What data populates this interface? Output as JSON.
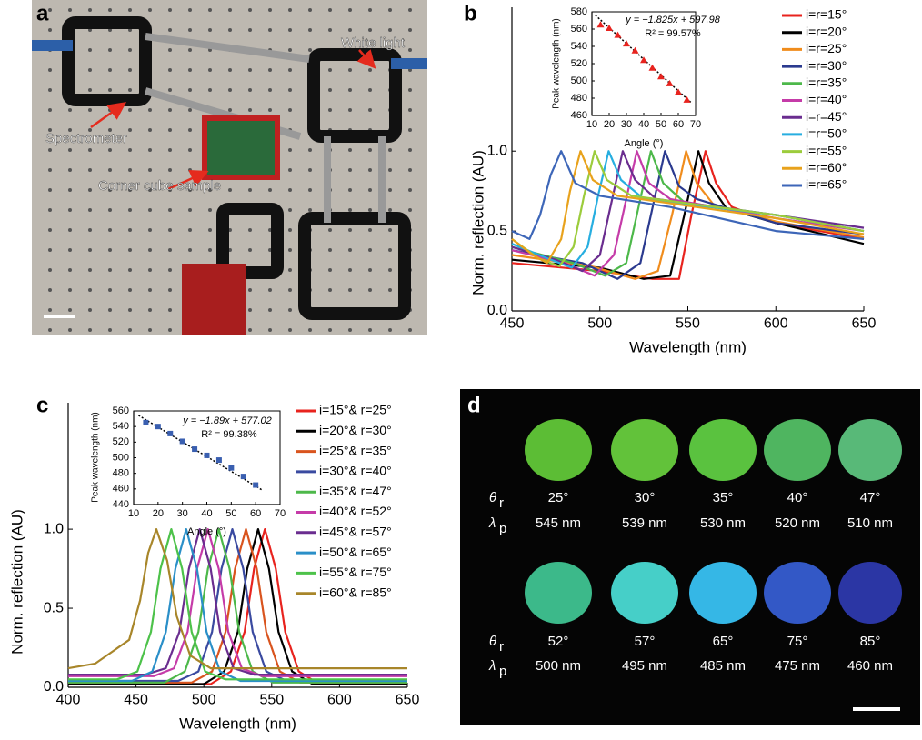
{
  "photo": {
    "label": "a",
    "annotations": [
      "Spectrometer",
      "White light",
      "Corner cube sample"
    ]
  },
  "chart_data": [
    {
      "type": "line",
      "label": "b",
      "xlabel": "Wavelength (nm)",
      "ylabel": "Norm. reflection (AU)",
      "xlim": [
        450,
        650
      ],
      "xticks": [
        450,
        500,
        550,
        600,
        650
      ],
      "ylim": [
        0,
        1.9
      ],
      "yticks": [
        {
          "value": 0,
          "label": "0.0"
        },
        0.5,
        {
          "value": 1,
          "label": "1.0"
        }
      ],
      "legend": "upper right",
      "series": [
        {
          "name": "i=r=15°",
          "color": "#e8231e",
          "x": [
            450,
            500,
            530,
            545,
            552,
            560,
            566,
            575,
            600,
            650
          ],
          "values": [
            0.3,
            0.25,
            0.2,
            0.2,
            0.6,
            1.0,
            0.8,
            0.65,
            0.55,
            0.45
          ]
        },
        {
          "name": "i=r=20°",
          "color": "#000000",
          "x": [
            450,
            500,
            525,
            540,
            548,
            556,
            562,
            572,
            600,
            650
          ],
          "values": [
            0.32,
            0.27,
            0.2,
            0.22,
            0.6,
            1.0,
            0.8,
            0.64,
            0.55,
            0.42
          ]
        },
        {
          "name": "i=r=25°",
          "color": "#f08c1c",
          "x": [
            450,
            495,
            520,
            533,
            541,
            549,
            555,
            565,
            600,
            650
          ],
          "values": [
            0.35,
            0.28,
            0.2,
            0.25,
            0.6,
            1.0,
            0.8,
            0.66,
            0.56,
            0.46
          ]
        },
        {
          "name": "i=r=30°",
          "color": "#2b3a8f",
          "x": [
            450,
            490,
            510,
            523,
            530,
            537,
            545,
            555,
            600,
            650
          ],
          "values": [
            0.38,
            0.3,
            0.2,
            0.3,
            0.65,
            1.0,
            0.78,
            0.7,
            0.55,
            0.48
          ]
        },
        {
          "name": "i=r=35°",
          "color": "#4db84a",
          "x": [
            450,
            485,
            503,
            515,
            522,
            529,
            536,
            548,
            600,
            650
          ],
          "values": [
            0.4,
            0.3,
            0.22,
            0.3,
            0.65,
            1.0,
            0.8,
            0.68,
            0.6,
            0.5
          ]
        },
        {
          "name": "i=r=40°",
          "color": "#c53ba8",
          "x": [
            450,
            480,
            497,
            508,
            515,
            521,
            528,
            540,
            600,
            650
          ],
          "values": [
            0.38,
            0.3,
            0.22,
            0.35,
            0.7,
            1.0,
            0.8,
            0.7,
            0.58,
            0.5
          ]
        },
        {
          "name": "i=r=45°",
          "color": "#6a2d8f",
          "x": [
            450,
            475,
            490,
            500,
            507,
            513,
            520,
            532,
            600,
            650
          ],
          "values": [
            0.4,
            0.32,
            0.25,
            0.35,
            0.7,
            1.0,
            0.82,
            0.7,
            0.6,
            0.52
          ]
        },
        {
          "name": "i=r=50°",
          "color": "#27aee0",
          "x": [
            450,
            470,
            484,
            493,
            499,
            505,
            512,
            525,
            600,
            650
          ],
          "values": [
            0.42,
            0.33,
            0.27,
            0.4,
            0.72,
            1.0,
            0.82,
            0.7,
            0.6,
            0.5
          ]
        },
        {
          "name": "i=r=55°",
          "color": "#9ccc3c",
          "x": [
            450,
            465,
            477,
            485,
            491,
            497,
            504,
            518,
            600,
            650
          ],
          "values": [
            0.45,
            0.33,
            0.28,
            0.4,
            0.72,
            1.0,
            0.82,
            0.72,
            0.6,
            0.5
          ]
        },
        {
          "name": "i=r=60°",
          "color": "#e8a21c",
          "x": [
            450,
            462,
            470,
            478,
            483,
            489,
            496,
            510,
            600,
            650
          ],
          "values": [
            0.45,
            0.35,
            0.3,
            0.45,
            0.75,
            1.0,
            0.82,
            0.72,
            0.58,
            0.48
          ]
        },
        {
          "name": "i=r=65°",
          "color": "#3d66b8",
          "x": [
            450,
            460,
            466,
            472,
            478,
            486,
            500,
            540,
            600,
            650
          ],
          "values": [
            0.5,
            0.45,
            0.6,
            0.85,
            1.0,
            0.8,
            0.72,
            0.65,
            0.5,
            0.45
          ]
        }
      ]
    },
    {
      "type": "scatter",
      "xlabel": "Angle (°)",
      "ylabel": "Peak wavelength (nm)",
      "marker": "triangle",
      "color": "#e8231e",
      "xlim": [
        10,
        70
      ],
      "xticks": [
        10,
        20,
        30,
        40,
        50,
        60,
        70
      ],
      "ylim": [
        460,
        580
      ],
      "yticks": [
        460,
        480,
        500,
        520,
        540,
        560,
        580
      ],
      "x": [
        15,
        20,
        25,
        30,
        35,
        40,
        45,
        50,
        55,
        60,
        65
      ],
      "values": [
        565,
        561,
        553,
        543,
        535,
        524,
        515,
        505,
        497,
        487,
        478
      ],
      "fit": {
        "slope": -1.825,
        "intercept": 597.98
      },
      "equation": "y = −1.825x + 597.98",
      "r2": "R² = 99.57%"
    },
    {
      "type": "line",
      "label": "c",
      "xlabel": "Wavelength (nm)",
      "ylabel": "Norm. reflection (AU)",
      "xlim": [
        400,
        650
      ],
      "xticks": [
        400,
        450,
        500,
        550,
        600,
        650
      ],
      "ylim": [
        0,
        1.8
      ],
      "yticks": [
        {
          "value": 0,
          "label": "0.0"
        },
        0.5,
        {
          "value": 1,
          "label": "1.0"
        }
      ],
      "legend": "upper right",
      "series": [
        {
          "name": "i=15°& r=25°",
          "color": "#e8231e",
          "x": [
            400,
            505,
            520,
            530,
            537,
            545,
            553,
            560,
            570,
            585,
            650
          ],
          "values": [
            0.02,
            0.02,
            0.1,
            0.35,
            0.75,
            1.0,
            0.75,
            0.35,
            0.1,
            0.02,
            0.02
          ]
        },
        {
          "name": "i=20°& r=30°",
          "color": "#000000",
          "x": [
            400,
            500,
            515,
            525,
            532,
            540,
            548,
            555,
            565,
            580,
            650
          ],
          "values": [
            0.02,
            0.02,
            0.1,
            0.35,
            0.75,
            1.0,
            0.75,
            0.35,
            0.1,
            0.02,
            0.02
          ]
        },
        {
          "name": "i=25°& r=35°",
          "color": "#d9541e",
          "x": [
            400,
            491,
            506,
            516,
            523,
            531,
            539,
            546,
            556,
            571,
            650
          ],
          "values": [
            0.03,
            0.03,
            0.1,
            0.35,
            0.75,
            1.0,
            0.75,
            0.35,
            0.1,
            0.03,
            0.03
          ]
        },
        {
          "name": "i=30°& r=40°",
          "color": "#3a4aa0",
          "x": [
            400,
            481,
            496,
            506,
            513,
            521,
            529,
            536,
            546,
            561,
            650
          ],
          "values": [
            0.04,
            0.04,
            0.1,
            0.35,
            0.75,
            1.0,
            0.75,
            0.35,
            0.1,
            0.04,
            0.04
          ]
        },
        {
          "name": "i=35°& r=47°",
          "color": "#4db84a",
          "x": [
            400,
            471,
            486,
            496,
            503,
            511,
            519,
            526,
            536,
            551,
            650
          ],
          "values": [
            0.03,
            0.03,
            0.1,
            0.35,
            0.75,
            1.0,
            0.75,
            0.35,
            0.1,
            0.03,
            0.03
          ]
        },
        {
          "name": "i=40°& r=52°",
          "color": "#c53ba8",
          "x": [
            400,
            463,
            478,
            488,
            495,
            503,
            511,
            518,
            528,
            543,
            650
          ],
          "values": [
            0.07,
            0.07,
            0.12,
            0.35,
            0.75,
            1.0,
            0.75,
            0.35,
            0.12,
            0.07,
            0.07
          ]
        },
        {
          "name": "i=45°& r=57°",
          "color": "#6a2d8f",
          "x": [
            400,
            457,
            472,
            482,
            489,
            497,
            505,
            512,
            522,
            537,
            650
          ],
          "values": [
            0.08,
            0.08,
            0.12,
            0.35,
            0.75,
            1.0,
            0.75,
            0.35,
            0.12,
            0.08,
            0.08
          ]
        },
        {
          "name": "i=50°& r=65°",
          "color": "#2a8fc8",
          "x": [
            400,
            447,
            462,
            472,
            479,
            487,
            495,
            502,
            512,
            527,
            650
          ],
          "values": [
            0.04,
            0.04,
            0.1,
            0.35,
            0.75,
            1.0,
            0.75,
            0.35,
            0.1,
            0.04,
            0.04
          ]
        },
        {
          "name": "i=55°& r=75°",
          "color": "#4dc24a",
          "x": [
            400,
            436,
            451,
            461,
            468,
            476,
            484,
            491,
            501,
            516,
            650
          ],
          "values": [
            0.05,
            0.05,
            0.1,
            0.35,
            0.75,
            1.0,
            0.75,
            0.35,
            0.1,
            0.05,
            0.05
          ]
        },
        {
          "name": "i=60°& r=85°",
          "color": "#a8862a",
          "x": [
            400,
            420,
            445,
            453,
            459,
            465,
            473,
            480,
            490,
            505,
            650
          ],
          "values": [
            0.12,
            0.15,
            0.3,
            0.55,
            0.85,
            1.0,
            0.8,
            0.45,
            0.2,
            0.12,
            0.12
          ]
        }
      ]
    },
    {
      "type": "scatter",
      "xlabel": "Angle (°)",
      "ylabel": "Peak wavelength (nm)",
      "marker": "square",
      "color": "#3a5fb0",
      "xlim": [
        10,
        70
      ],
      "xticks": [
        10,
        20,
        30,
        40,
        50,
        60,
        70
      ],
      "ylim": [
        440,
        560
      ],
      "yticks": [
        440,
        460,
        480,
        500,
        520,
        540,
        560
      ],
      "x": [
        15,
        20,
        25,
        30,
        35,
        40,
        45,
        50,
        55,
        60
      ],
      "values": [
        545,
        540,
        531,
        521,
        511,
        503,
        497,
        487,
        476,
        465
      ],
      "fit": {
        "slope": -1.89,
        "intercept": 577.02
      },
      "equation": "y = −1.89x + 577.02",
      "r2": "R² = 99.38%"
    }
  ],
  "panel_d": {
    "label": "d",
    "theta": "θ",
    "theta_sub": "r",
    "lambda": "λ",
    "lambda_sub": "p",
    "rows": [
      {
        "angles": [
          "25°",
          "30°",
          "35°",
          "40°",
          "47°"
        ],
        "wavelengths": [
          "545 nm",
          "539 nm",
          "530 nm",
          "520 nm",
          "510 nm"
        ]
      },
      {
        "angles": [
          "52°",
          "57°",
          "65°",
          "75°",
          "85°"
        ],
        "wavelengths": [
          "500 nm",
          "495 nm",
          "485 nm",
          "475 nm",
          "460 nm"
        ]
      }
    ]
  }
}
